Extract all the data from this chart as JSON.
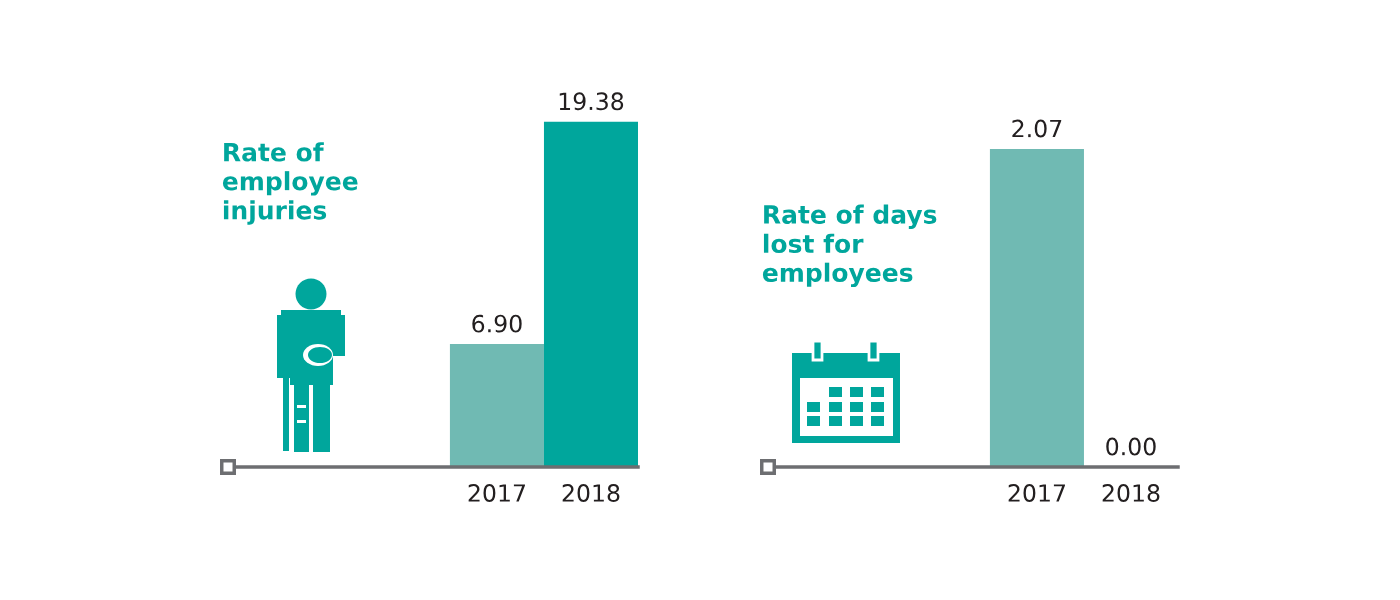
{
  "chart_data": [
    {
      "type": "bar",
      "title": "Rate of\nemployee\ninjuries",
      "categories": [
        "2017",
        "2018"
      ],
      "values": [
        6.9,
        19.38
      ],
      "value_labels": [
        "6.90",
        "19.38"
      ],
      "colors": [
        "#70bab3",
        "#00a69c"
      ]
    },
    {
      "type": "bar",
      "title": "Rate of days\nlost for\nemployees",
      "categories": [
        "2017",
        "2018"
      ],
      "values": [
        2.07,
        0.0
      ],
      "value_labels": [
        "2.07",
        "0.00"
      ],
      "colors": [
        "#70bab3",
        "#00a69c"
      ]
    }
  ]
}
